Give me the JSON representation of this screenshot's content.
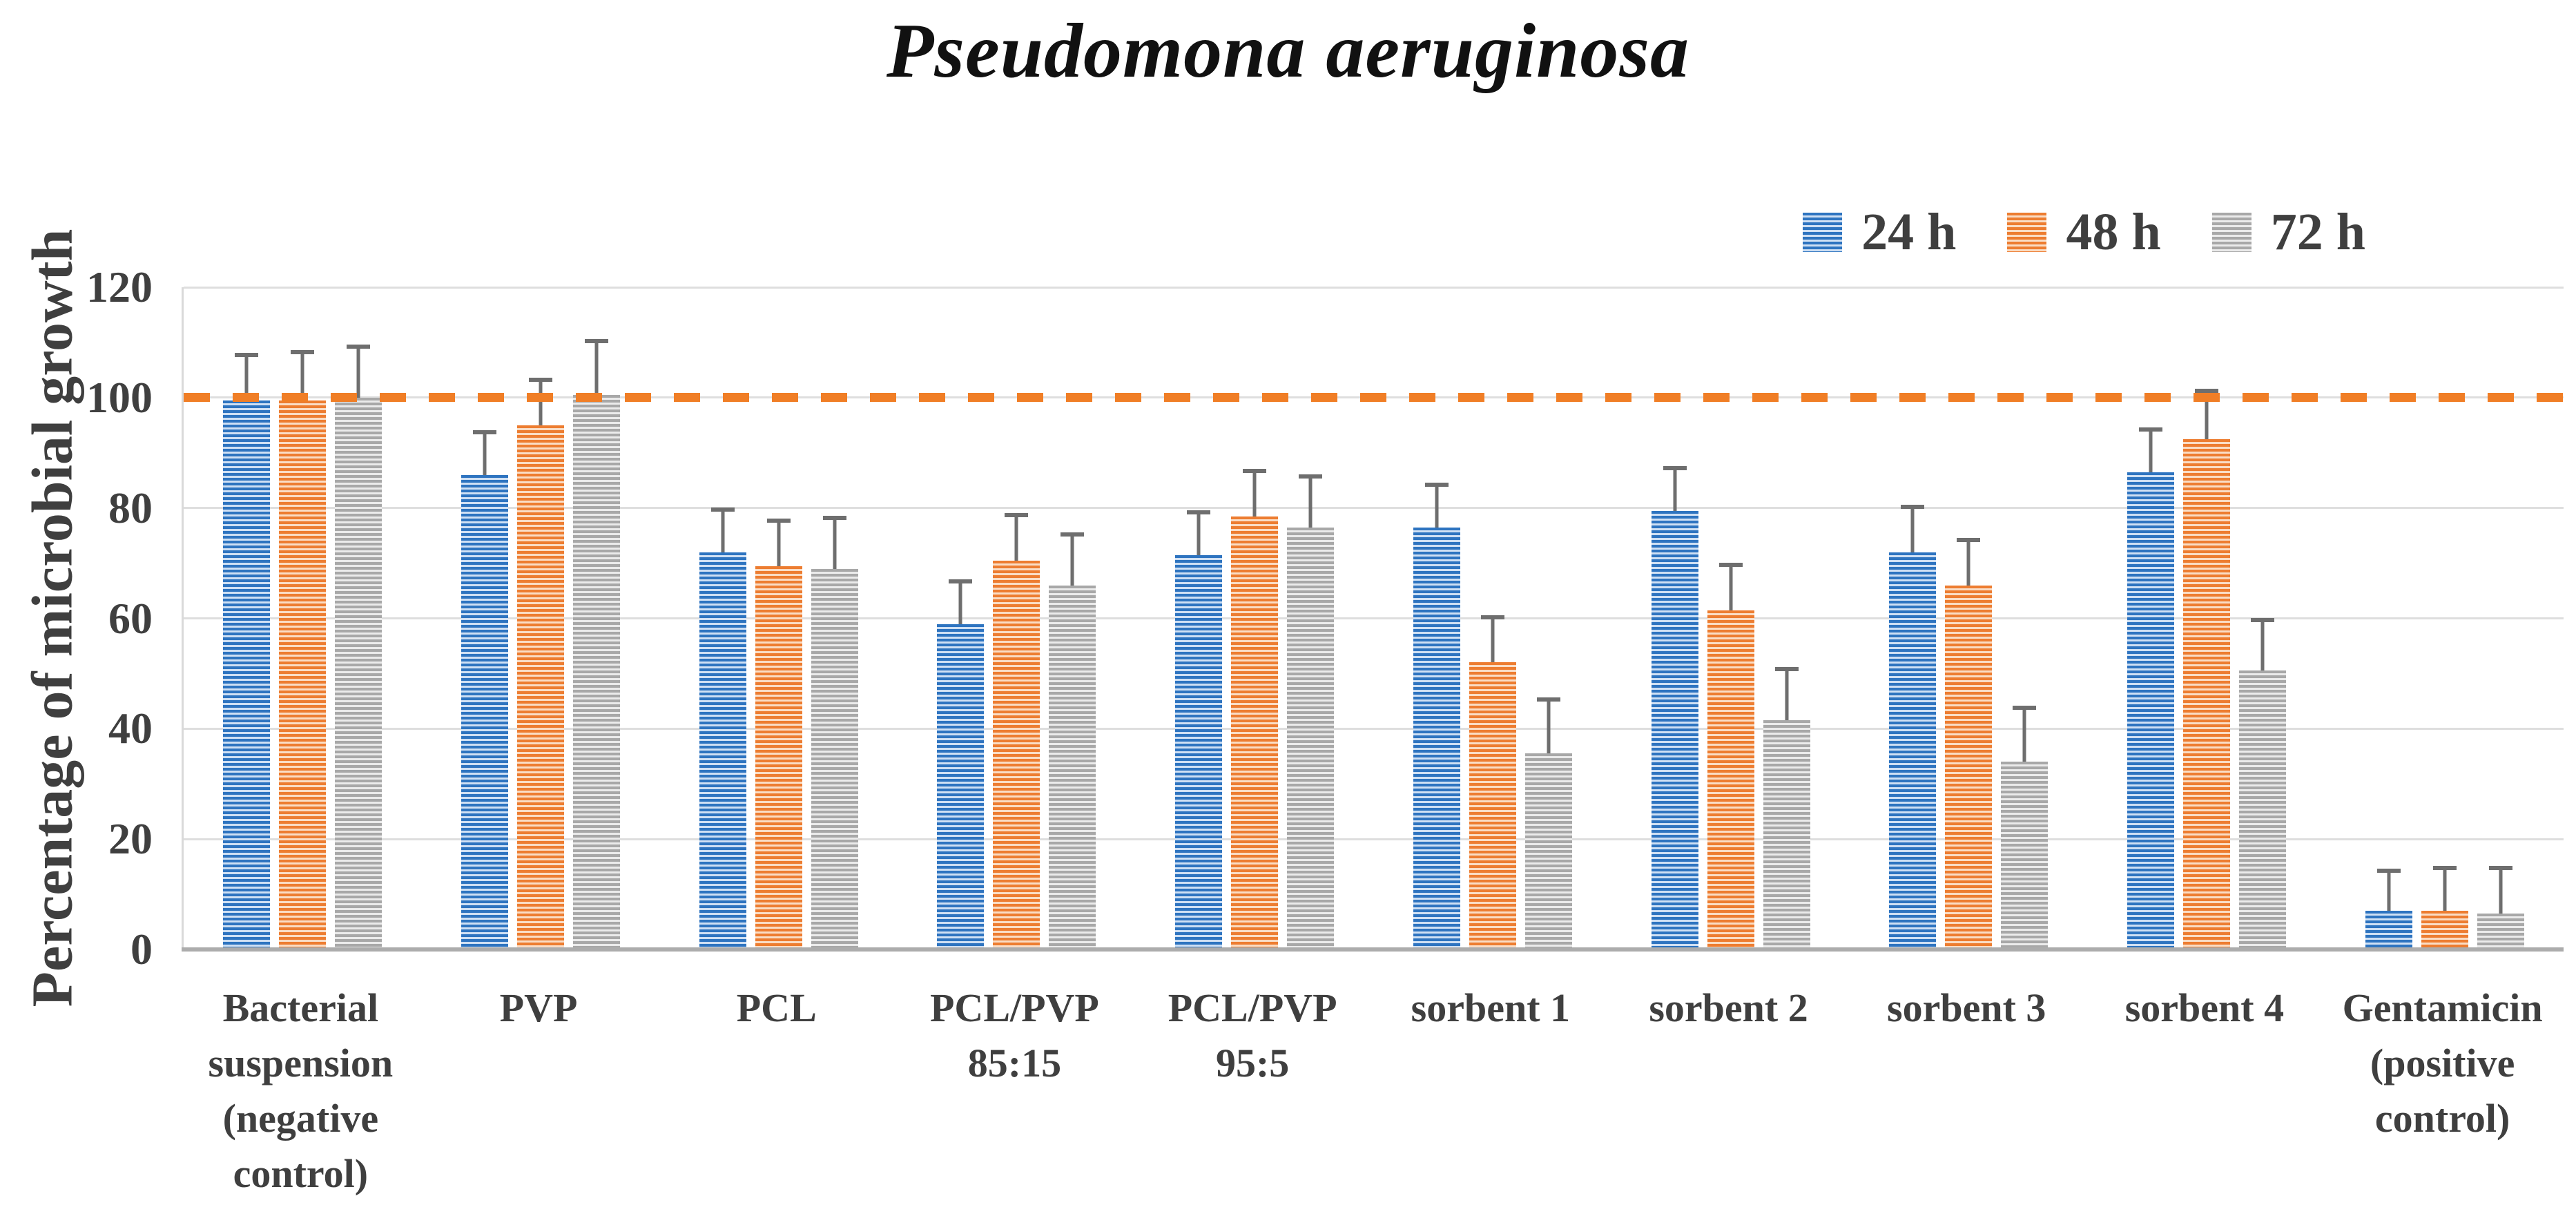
{
  "chart_data": {
    "type": "bar",
    "title": "Pseudomona aeruginosa",
    "ylabel": "Percentage of microbial growth",
    "xlabel": "",
    "ylim": [
      0,
      120
    ],
    "yticks": [
      0,
      20,
      40,
      60,
      80,
      100,
      120
    ],
    "grid": true,
    "legend_position": "top-right",
    "error_bars": "plus-direction-with-caps",
    "reference_line": {
      "value": 100,
      "style": "dashed",
      "color": "#F07E26"
    },
    "categories": [
      "Bacterial suspension (negative control)",
      "PVP",
      "PCL",
      "PCL/PVP 85:15",
      "PCL/PVP 95:5",
      "sorbent 1",
      "sorbent 2",
      "sorbent 3",
      "sorbent 4",
      "Gentamicin (positive control)"
    ],
    "series": [
      {
        "name": "24 h",
        "pattern": "horizontal-stripes",
        "color": "#2E74C0",
        "tint": "#CFE0F4",
        "values": [
          99.5,
          86,
          72,
          59,
          71.5,
          76.5,
          79.5,
          72,
          86.5,
          7
        ],
        "errors_plus": [
          8.5,
          8,
          8,
          8,
          8,
          8,
          8,
          8.5,
          8,
          7.5
        ]
      },
      {
        "name": "48 h",
        "pattern": "horizontal-stripes",
        "color": "#ED7D31",
        "tint": "#FADDC5",
        "values": [
          99.5,
          95,
          69.5,
          70.5,
          78.5,
          52,
          61.5,
          66,
          92.5,
          7
        ],
        "errors_plus": [
          9,
          8.5,
          8.5,
          8.5,
          8.5,
          8.5,
          8.5,
          8.5,
          9,
          8
        ]
      },
      {
        "name": "72 h",
        "pattern": "horizontal-stripes",
        "color": "#A8A8A8",
        "tint": "#EBEBEB",
        "values": [
          100,
          100.5,
          69,
          66,
          76.5,
          35.5,
          41.5,
          34,
          50.5,
          6.5
        ],
        "errors_plus": [
          9.5,
          10,
          9.5,
          9.5,
          9.5,
          10,
          9.5,
          10,
          9.5,
          8.5
        ]
      }
    ],
    "colors": {
      "gridline": "#DEDEDE",
      "axis_line": "#ACACAC",
      "text": "#3F3F3F",
      "error_bar": "#6E6E6E",
      "title_text": "#111111"
    }
  }
}
